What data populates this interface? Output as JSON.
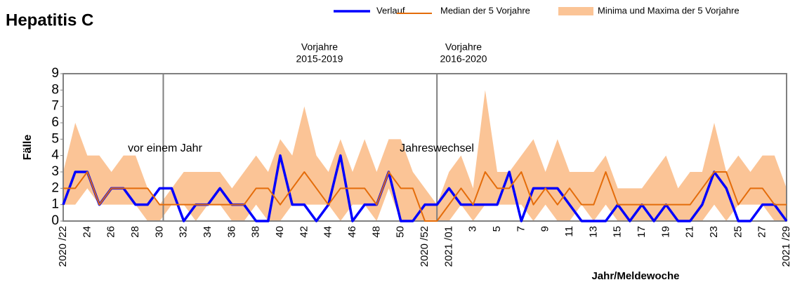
{
  "chart_data": {
    "type": "line",
    "title": "Hepatitis C",
    "y_label": "Fälle",
    "x_label": "Jahr/Meldewoche",
    "categories": [
      "2020 /22",
      null,
      "24",
      null,
      "26",
      null,
      "28",
      null,
      "30",
      null,
      "32",
      null,
      "34",
      null,
      "36",
      null,
      "38",
      null,
      "40",
      null,
      "42",
      null,
      "44",
      null,
      "46",
      null,
      "48",
      null,
      "50",
      null,
      "2020 /52",
      null,
      "2021 /01",
      null,
      "3",
      null,
      "5",
      null,
      "7",
      null,
      "9",
      null,
      "11",
      null,
      "13",
      null,
      "15",
      null,
      "17",
      null,
      "19",
      null,
      "21",
      null,
      "23",
      null,
      "25",
      null,
      "27",
      null,
      "2021 /29"
    ],
    "series": [
      {
        "name": "Verlauf",
        "color": "#0000ff",
        "values": [
          1,
          3,
          3,
          1,
          2,
          2,
          1,
          1,
          2,
          2,
          0,
          1,
          1,
          2,
          1,
          1,
          0,
          0,
          4,
          1,
          1,
          0,
          1,
          4,
          0,
          1,
          1,
          3,
          0,
          0,
          1,
          1,
          2,
          1,
          1,
          1,
          1,
          3,
          0,
          2,
          2,
          2,
          1,
          0,
          0,
          0,
          1,
          0,
          1,
          0,
          1,
          0,
          0,
          1,
          3,
          2,
          0,
          0,
          1,
          1,
          0
        ]
      },
      {
        "name": "Median der 5 Vorjahre",
        "color": "#e46c0a",
        "values": [
          2,
          2,
          3,
          1,
          2,
          2,
          2,
          2,
          1,
          1,
          1,
          1,
          1,
          1,
          1,
          1,
          2,
          2,
          1,
          2,
          3,
          2,
          1,
          2,
          2,
          2,
          1,
          3,
          2,
          2,
          0,
          0,
          1,
          2,
          1,
          3,
          2,
          2,
          3,
          1,
          2,
          1,
          2,
          1,
          1,
          3,
          1,
          1,
          1,
          1,
          1,
          1,
          1,
          2,
          3,
          3,
          1,
          2,
          2,
          1,
          1
        ]
      },
      {
        "name": "Minima und Maxima der 5 Vorjahre",
        "color": "#fbc496",
        "lower": [
          1,
          1,
          2,
          1,
          1,
          1,
          1,
          0,
          0,
          1,
          1,
          0,
          1,
          1,
          0,
          0,
          1,
          0,
          0,
          1,
          1,
          1,
          1,
          0,
          1,
          1,
          0,
          2,
          0,
          0,
          0,
          0,
          0,
          1,
          0,
          1,
          1,
          1,
          1,
          0,
          1,
          0,
          0,
          1,
          0,
          1,
          0,
          0,
          0,
          0,
          0,
          0,
          0,
          0,
          1,
          0,
          1,
          1,
          1,
          0,
          0
        ],
        "upper": [
          3,
          6,
          4,
          4,
          3,
          4,
          4,
          2,
          1,
          2,
          3,
          3,
          3,
          3,
          2,
          3,
          4,
          3,
          5,
          4,
          7,
          4,
          3,
          5,
          3,
          5,
          3,
          5,
          5,
          3,
          2,
          1,
          3,
          4,
          2,
          8,
          3,
          3,
          4,
          5,
          3,
          5,
          3,
          3,
          3,
          4,
          2,
          2,
          2,
          3,
          4,
          2,
          3,
          3,
          6,
          3,
          4,
          3,
          4,
          4,
          2
        ]
      }
    ],
    "annotations": [
      {
        "lines": [
          "Vorjahre",
          "2015-2019"
        ]
      },
      {
        "lines": [
          "Vorjahre",
          "2016-2020"
        ]
      },
      {
        "lines": [
          "vor einem Jahr"
        ]
      },
      {
        "lines": [
          "Jahreswechsel"
        ]
      }
    ],
    "ylim": [
      0,
      9
    ],
    "yticks": [
      0,
      1,
      2,
      3,
      4,
      5,
      6,
      7,
      8,
      9
    ],
    "grid": false
  }
}
